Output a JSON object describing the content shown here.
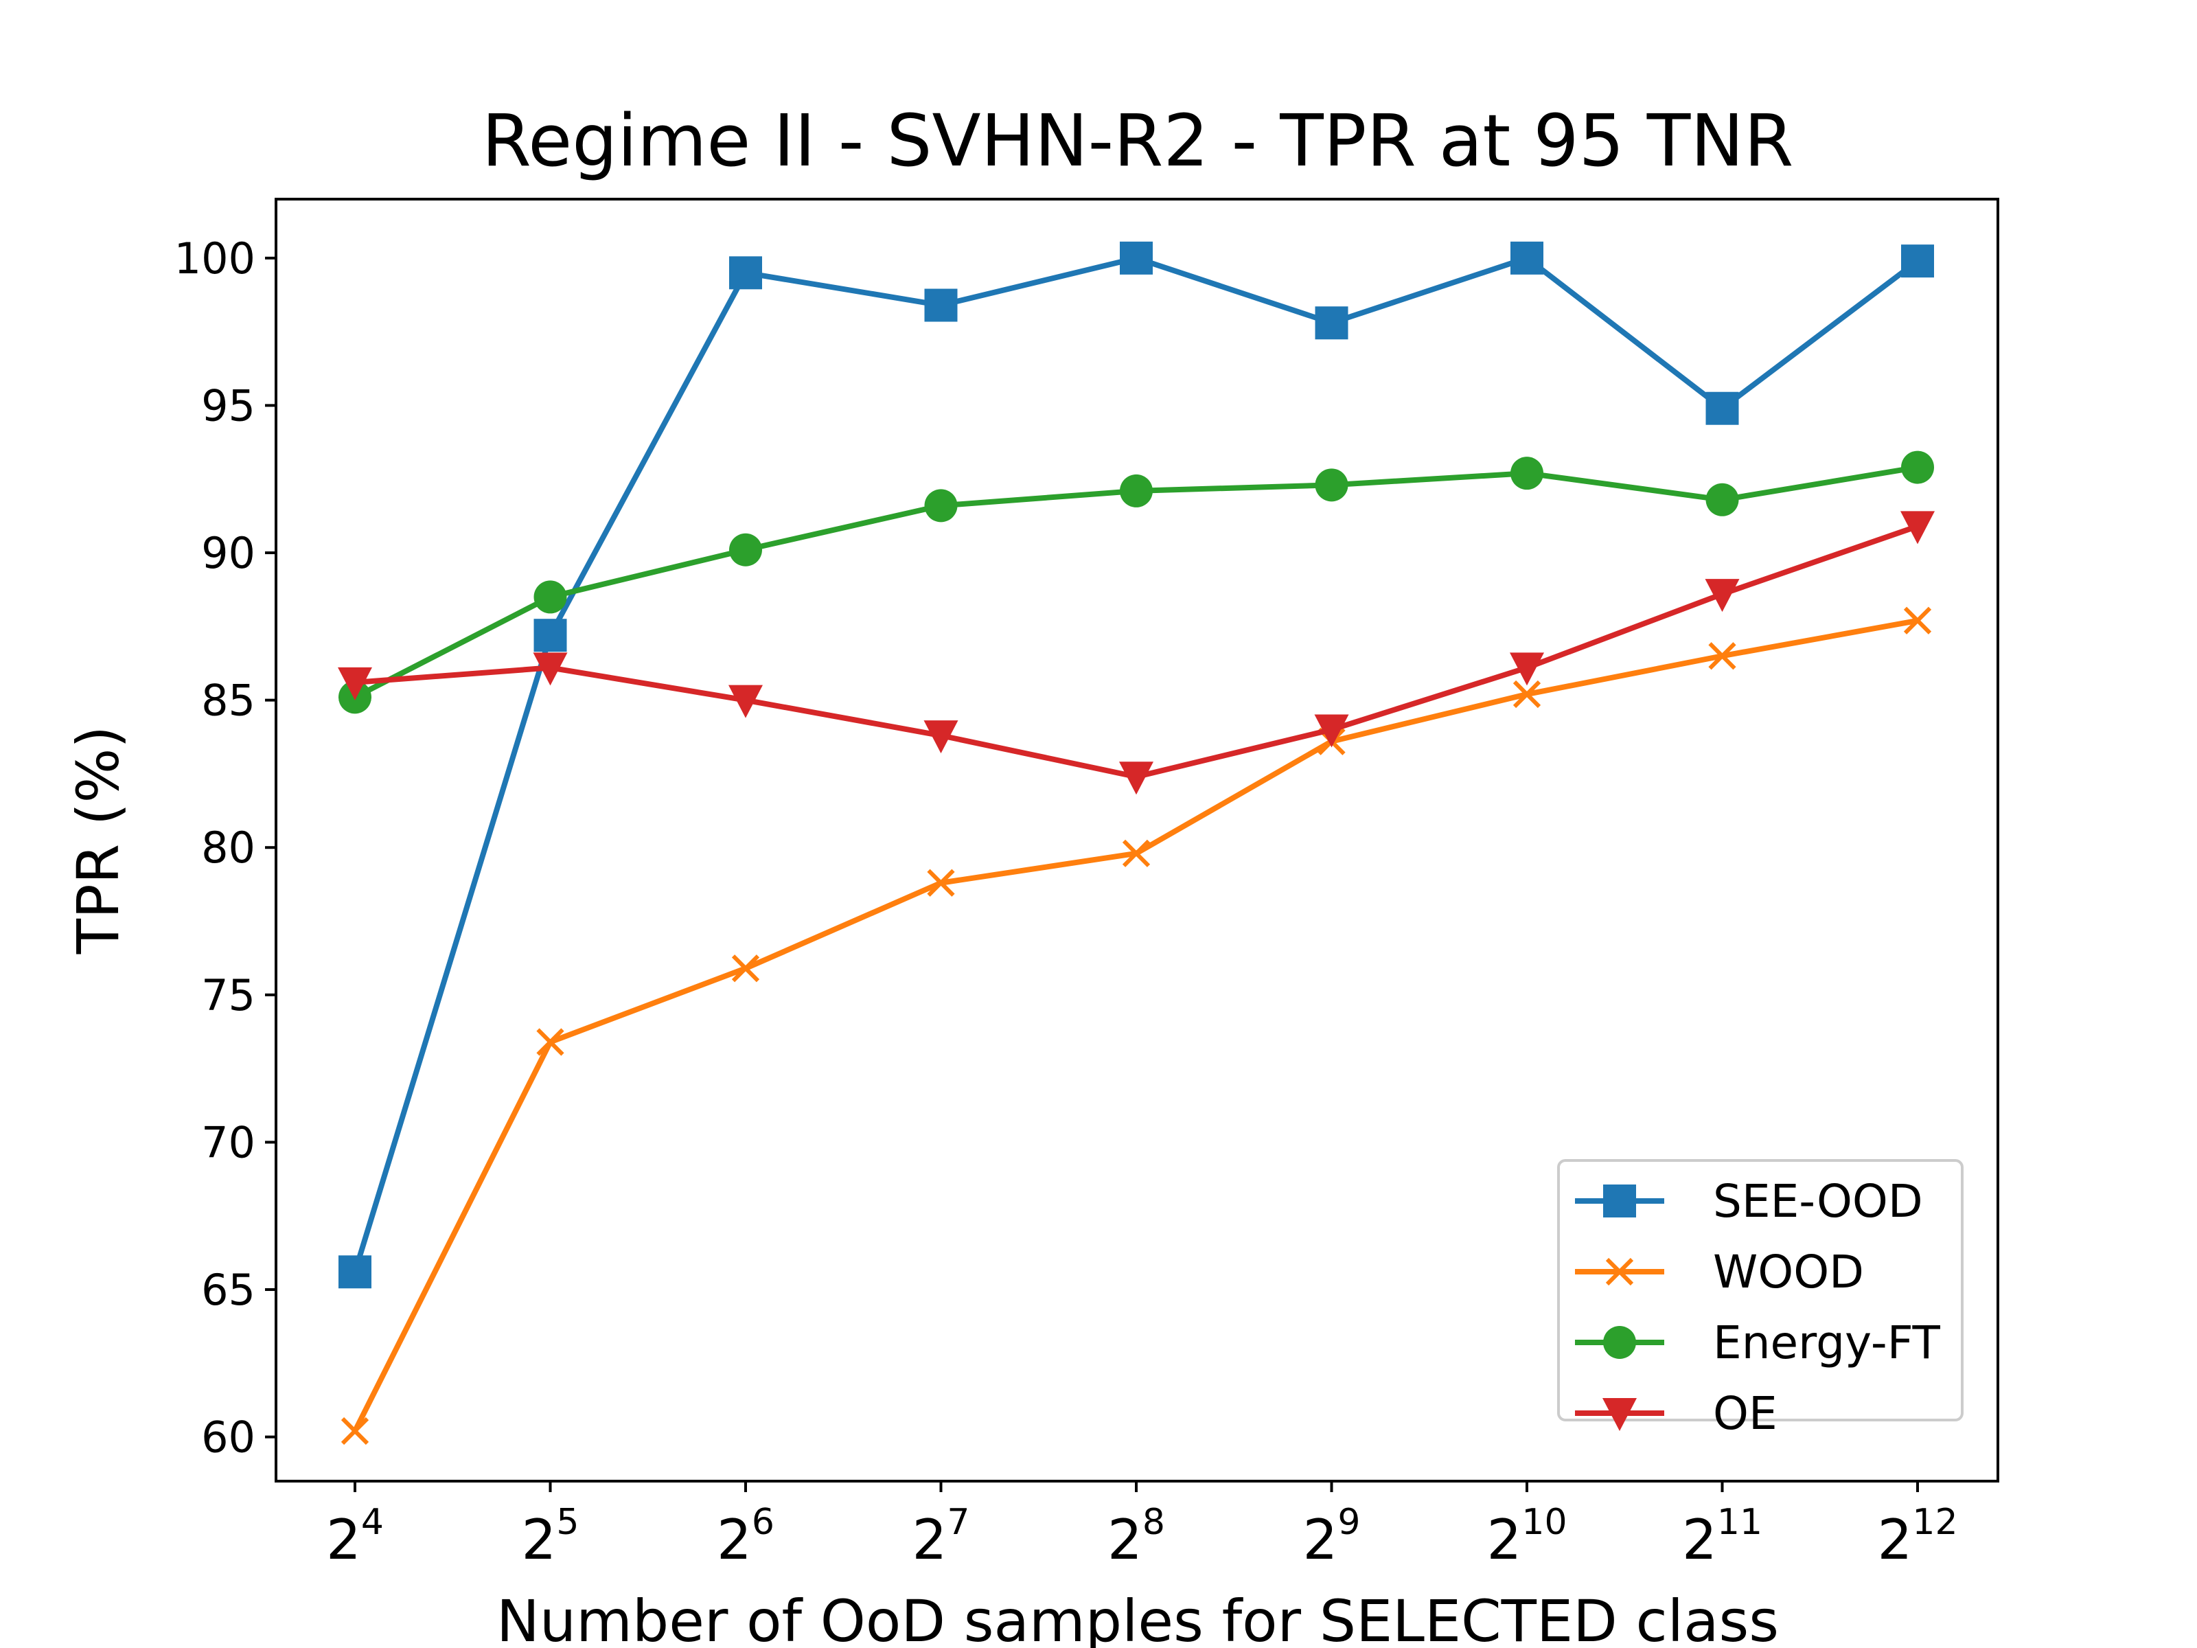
{
  "chart_data": {
    "type": "line",
    "title": "Regime II - SVHN-R2 - TPR at 95 TNR",
    "xlabel": "Number of OoD samples for SELECTED class",
    "ylabel": "TPR (%)",
    "x_base": "2",
    "x_exponents": [
      "4",
      "5",
      "6",
      "7",
      "8",
      "9",
      "10",
      "11",
      "12"
    ],
    "ylim": [
      58.5,
      102
    ],
    "yticks": [
      60,
      65,
      70,
      75,
      80,
      85,
      90,
      95,
      100
    ],
    "grid": false,
    "legend_position": "lower-right",
    "series": [
      {
        "name": "SEE-OOD",
        "color": "#1f77b4",
        "marker": "square",
        "values": [
          65.6,
          87.2,
          99.5,
          98.4,
          100.0,
          97.8,
          100.0,
          94.9,
          99.9
        ]
      },
      {
        "name": "WOOD",
        "color": "#ff7f0e",
        "marker": "x",
        "values": [
          60.2,
          73.4,
          75.9,
          78.8,
          79.8,
          83.6,
          85.2,
          86.5,
          87.7
        ]
      },
      {
        "name": "Energy-FT",
        "color": "#2ca02c",
        "marker": "circle",
        "values": [
          85.1,
          88.5,
          90.1,
          91.6,
          92.1,
          92.3,
          92.7,
          91.8,
          92.9
        ]
      },
      {
        "name": "OE",
        "color": "#d62728",
        "marker": "triangle-down",
        "values": [
          85.6,
          86.1,
          85.0,
          83.8,
          82.4,
          84.0,
          86.1,
          88.6,
          90.9
        ]
      }
    ]
  }
}
